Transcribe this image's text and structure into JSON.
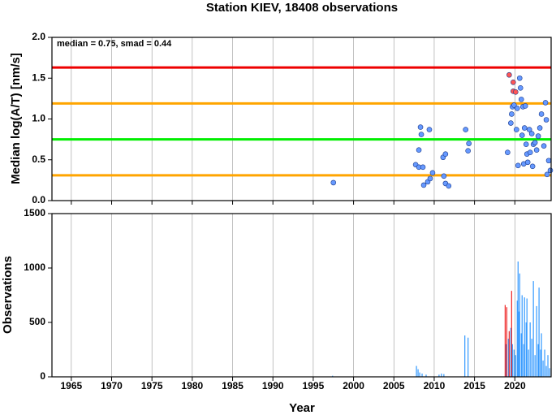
{
  "chart_data": [
    {
      "type": "scatter",
      "title": "Station KIEV, 18408 observations",
      "annotation": "median = 0.75, smad = 0.44",
      "y_label": "Median log(A/T) [nm/s]",
      "xlim": [
        1962.6,
        2024.5
      ],
      "ylim": [
        0,
        2
      ],
      "yticks": [
        {
          "value": 0,
          "label": "0.0"
        },
        {
          "value": 0.5,
          "label": "0.5"
        },
        {
          "value": 1,
          "label": "1.0"
        },
        {
          "value": 1.5,
          "label": "1.5"
        },
        {
          "value": 2,
          "label": "2.0"
        }
      ],
      "grid": true,
      "hlines": [
        {
          "value": 1.63,
          "color": "#ee0000"
        },
        {
          "value": 1.19,
          "color": "#ffa500"
        },
        {
          "value": 0.75,
          "color": "#00ee00"
        },
        {
          "value": 0.31,
          "color": "#ffa500"
        }
      ],
      "series": [
        {
          "color": "#6699ff",
          "x": [
            1997.5,
            2007.7,
            2008.1,
            2008.3,
            2008.4,
            2008.1,
            2008.6,
            2008.7,
            2009.2,
            2009.4,
            2009.8,
            2009.5,
            2011.1,
            2011.4,
            2011.2,
            2011.4,
            2011.8,
            2013.9,
            2014.3,
            2014.2,
            2019.1,
            2019.5,
            2019.6,
            2019.7,
            2019.9,
            2020.2,
            2020.3,
            2020.4,
            2020.6,
            2020.7,
            2020.8,
            2020.9,
            2021.0,
            2021.1,
            2021.2,
            2021.3,
            2021.4,
            2021.5,
            2021.6,
            2021.8,
            2021.9,
            2022.1,
            2022.2,
            2022.3,
            2022.5,
            2022.7,
            2022.9,
            2023.1,
            2023.3,
            2023.6,
            2023.8,
            2024.0,
            2024.2,
            2024.4,
            2023.9
          ],
          "values": [
            0.22,
            0.44,
            0.62,
            0.9,
            0.81,
            0.41,
            0.41,
            0.19,
            0.23,
            0.87,
            0.34,
            0.27,
            0.53,
            0.57,
            0.3,
            0.21,
            0.18,
            0.87,
            0.7,
            0.61,
            0.59,
            0.95,
            1.06,
            1.15,
            1.17,
            0.87,
            1.13,
            0.43,
            1.5,
            1.38,
            1.24,
            0.8,
            1.15,
            0.45,
            0.89,
            1.16,
            0.69,
            0.57,
            0.47,
            0.87,
            0.59,
            0.82,
            0.42,
            0.69,
            0.71,
            0.62,
            0.79,
            0.89,
            1.06,
            0.67,
            1.2,
            0.32,
            0.49,
            0.37,
            0.99
          ]
        },
        {
          "color": "#ff5555",
          "x": [
            2019.3,
            2019.8,
            2019.8,
            2020.1
          ],
          "values": [
            1.54,
            1.45,
            1.34,
            1.33
          ]
        }
      ]
    },
    {
      "type": "bar",
      "x_label": "Year",
      "y_label": "Observations",
      "xlim": [
        1962.6,
        2024.5
      ],
      "xticks": [
        1965,
        1970,
        1975,
        1980,
        1985,
        1990,
        1995,
        2000,
        2005,
        2010,
        2015,
        2020
      ],
      "ylim": [
        0,
        1500
      ],
      "yticks": [
        0,
        500,
        1000,
        1500
      ],
      "grid": true,
      "series": [
        {
          "color": "#3399ff",
          "x": [
            1997.4,
            2007.8,
            2008.0,
            2008.2,
            2008.5,
            2009.0,
            2010.6,
            2010.9,
            2011.2,
            2013.8,
            2014.2,
            2018.9,
            2019.2,
            2019.5,
            2019.7,
            2019.9,
            2020.1,
            2020.3,
            2020.4,
            2020.5,
            2020.6,
            2020.8,
            2020.9,
            2021.1,
            2021.2,
            2021.4,
            2021.5,
            2021.7,
            2021.9,
            2022.1,
            2022.3,
            2022.5,
            2022.7,
            2022.9,
            2023.0,
            2023.2,
            2023.3,
            2023.5,
            2023.7,
            2023.9,
            2024.1,
            2024.3
          ],
          "values": [
            10,
            100,
            70,
            40,
            30,
            20,
            20,
            30,
            25,
            380,
            360,
            300,
            350,
            450,
            300,
            250,
            200,
            700,
            1060,
            600,
            950,
            400,
            750,
            300,
            730,
            500,
            720,
            250,
            500,
            350,
            880,
            200,
            650,
            300,
            820,
            250,
            400,
            150,
            250,
            100,
            200,
            80
          ]
        },
        {
          "color": "#ee2222",
          "x": [
            2018.8,
            2019.0,
            2019.3,
            2019.6
          ],
          "values": [
            660,
            640,
            420,
            790
          ]
        }
      ]
    }
  ]
}
